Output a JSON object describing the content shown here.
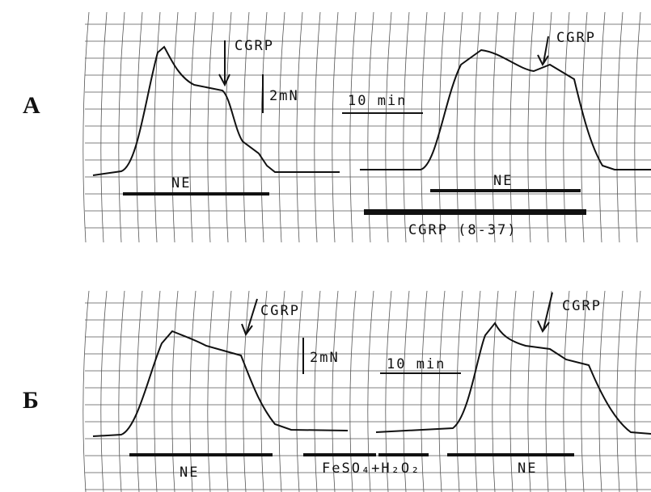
{
  "panels": [
    {
      "label": "А",
      "arrows": [
        "CGRP",
        "CGRP"
      ],
      "force_scale": "2mN",
      "time_scale": "10 min",
      "bars": [
        "NE",
        "NE",
        "CGRP (8-37)"
      ]
    },
    {
      "label": "Б",
      "arrows": [
        "CGRP",
        "CGRP"
      ],
      "force_scale": "2mN",
      "time_scale": "10 min",
      "bars": [
        "NE",
        "FeSO₄+H₂O₂",
        "NE"
      ]
    }
  ]
}
